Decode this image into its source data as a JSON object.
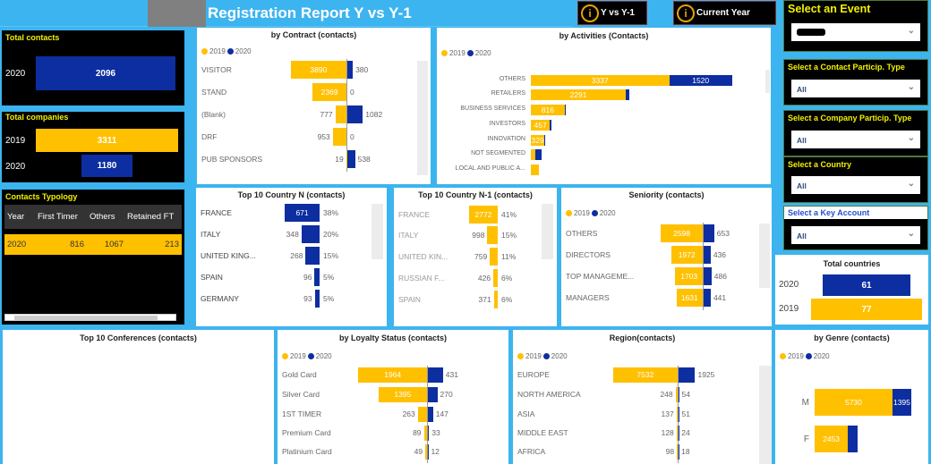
{
  "header": {
    "title": "Registration Report Y vs Y-1",
    "btn_yvs": "Y vs Y-1",
    "btn_current": "Current Year"
  },
  "colors": {
    "y2019": "#ffc000",
    "y2020": "#0d2ea0",
    "background": "#3cb4ef",
    "label_yellow": "#f2f200"
  },
  "legend": [
    "2019",
    "2020"
  ],
  "total_contacts": {
    "title": "Total contacts",
    "rows": [
      {
        "year": "2020",
        "value": "2096"
      }
    ]
  },
  "total_companies": {
    "title": "Total companies",
    "rows": [
      {
        "year": "2019",
        "value": "3311"
      },
      {
        "year": "2020",
        "value": "1180"
      }
    ]
  },
  "total_countries": {
    "title": "Total countries",
    "rows": [
      {
        "year": "2020",
        "value": "61"
      },
      {
        "year": "2019",
        "value": "77"
      }
    ]
  },
  "typology": {
    "title": "Contacts Typology",
    "columns": [
      "Year",
      "First Timer",
      "Others",
      "Retained FT"
    ],
    "rows": [
      [
        "2020",
        "816",
        "1067",
        "213"
      ]
    ]
  },
  "slicers": [
    {
      "label": "Select an Event",
      "value": ""
    },
    {
      "label": "Select a Contact Particip. Type",
      "value": "All"
    },
    {
      "label": "Select a Company Particip. Type",
      "value": "All"
    },
    {
      "label": "Select a Country",
      "value": "All"
    },
    {
      "label": "Select a Key Account",
      "value": "All"
    }
  ],
  "conferences": {
    "title": "Top 10 Conferences (contacts)"
  },
  "charts": {
    "contract": {
      "title": "by Contract (contacts)",
      "categories": [
        "VISITOR",
        "STAND",
        "(Blank)",
        "DRF",
        "PUB SPONSORS"
      ],
      "y2019": [
        3890,
        2369,
        777,
        953,
        19
      ],
      "y2020": [
        380,
        0,
        1082,
        0,
        538
      ]
    },
    "activities": {
      "title": "by Activities (Contacts)",
      "categories": [
        "OTHERS",
        "RETAILERS",
        "BUSINESS SERVICES",
        "INVESTORS",
        "INNOVATION",
        "NOT SEGMENTED",
        "LOCAL AND PUBLIC A..."
      ],
      "y2019": [
        3337,
        2291,
        816,
        457,
        329,
        110,
        200
      ],
      "y2020": [
        1520,
        90,
        30,
        30,
        25,
        160,
        0
      ],
      "labeled": [
        [
          true,
          true
        ],
        [
          true,
          false
        ],
        [
          true,
          false
        ],
        [
          true,
          false
        ],
        [
          true,
          false
        ],
        [
          false,
          false
        ],
        [
          false,
          false
        ]
      ]
    },
    "country_n": {
      "title": "Top 10 Country N (contacts)",
      "categories": [
        "FRANCE",
        "ITALY",
        "UNITED KING...",
        "SPAIN",
        "GERMANY"
      ],
      "values": [
        671,
        348,
        268,
        96,
        93
      ],
      "pct": [
        "38%",
        "20%",
        "15%",
        "5%",
        "5%"
      ]
    },
    "country_n1": {
      "title": "Top 10 Country N-1 (contacts)",
      "categories": [
        "FRANCE",
        "ITALY",
        "UNITED KIN...",
        "RUSSIAN F...",
        "SPAIN"
      ],
      "values": [
        2772,
        998,
        759,
        426,
        371
      ],
      "pct": [
        "41%",
        "15%",
        "11%",
        "6%",
        "6%"
      ]
    },
    "seniority": {
      "title": "Seniority (contacts)",
      "categories": [
        "OTHERS",
        "DIRECTORS",
        "TOP MANAGEME...",
        "MANAGERS"
      ],
      "y2019": [
        2598,
        1972,
        1703,
        1631
      ],
      "y2020": [
        653,
        436,
        486,
        441
      ]
    },
    "loyalty": {
      "title": "by Loyalty Status (contacts)",
      "categories": [
        "Gold Card",
        "Silver Card",
        "1ST TIMER",
        "Premium Card",
        "Platinium Card"
      ],
      "y2019": [
        1964,
        1395,
        263,
        89,
        49
      ],
      "y2020": [
        431,
        270,
        147,
        33,
        12
      ]
    },
    "region": {
      "title": "Region(contacts)",
      "categories": [
        "EUROPE",
        "NORTH AMERICA",
        "ASIA",
        "MIDDLE EAST",
        "AFRICA"
      ],
      "y2019": [
        7532,
        248,
        137,
        128,
        98
      ],
      "y2020": [
        1925,
        54,
        51,
        24,
        18
      ]
    },
    "genre": {
      "title": "by Genre (contacts)",
      "categories": [
        "M",
        "F"
      ],
      "y2019": [
        5730,
        2453
      ],
      "y2020": [
        1395,
        700
      ],
      "labeled": [
        [
          true,
          true
        ],
        [
          true,
          false
        ]
      ]
    }
  }
}
